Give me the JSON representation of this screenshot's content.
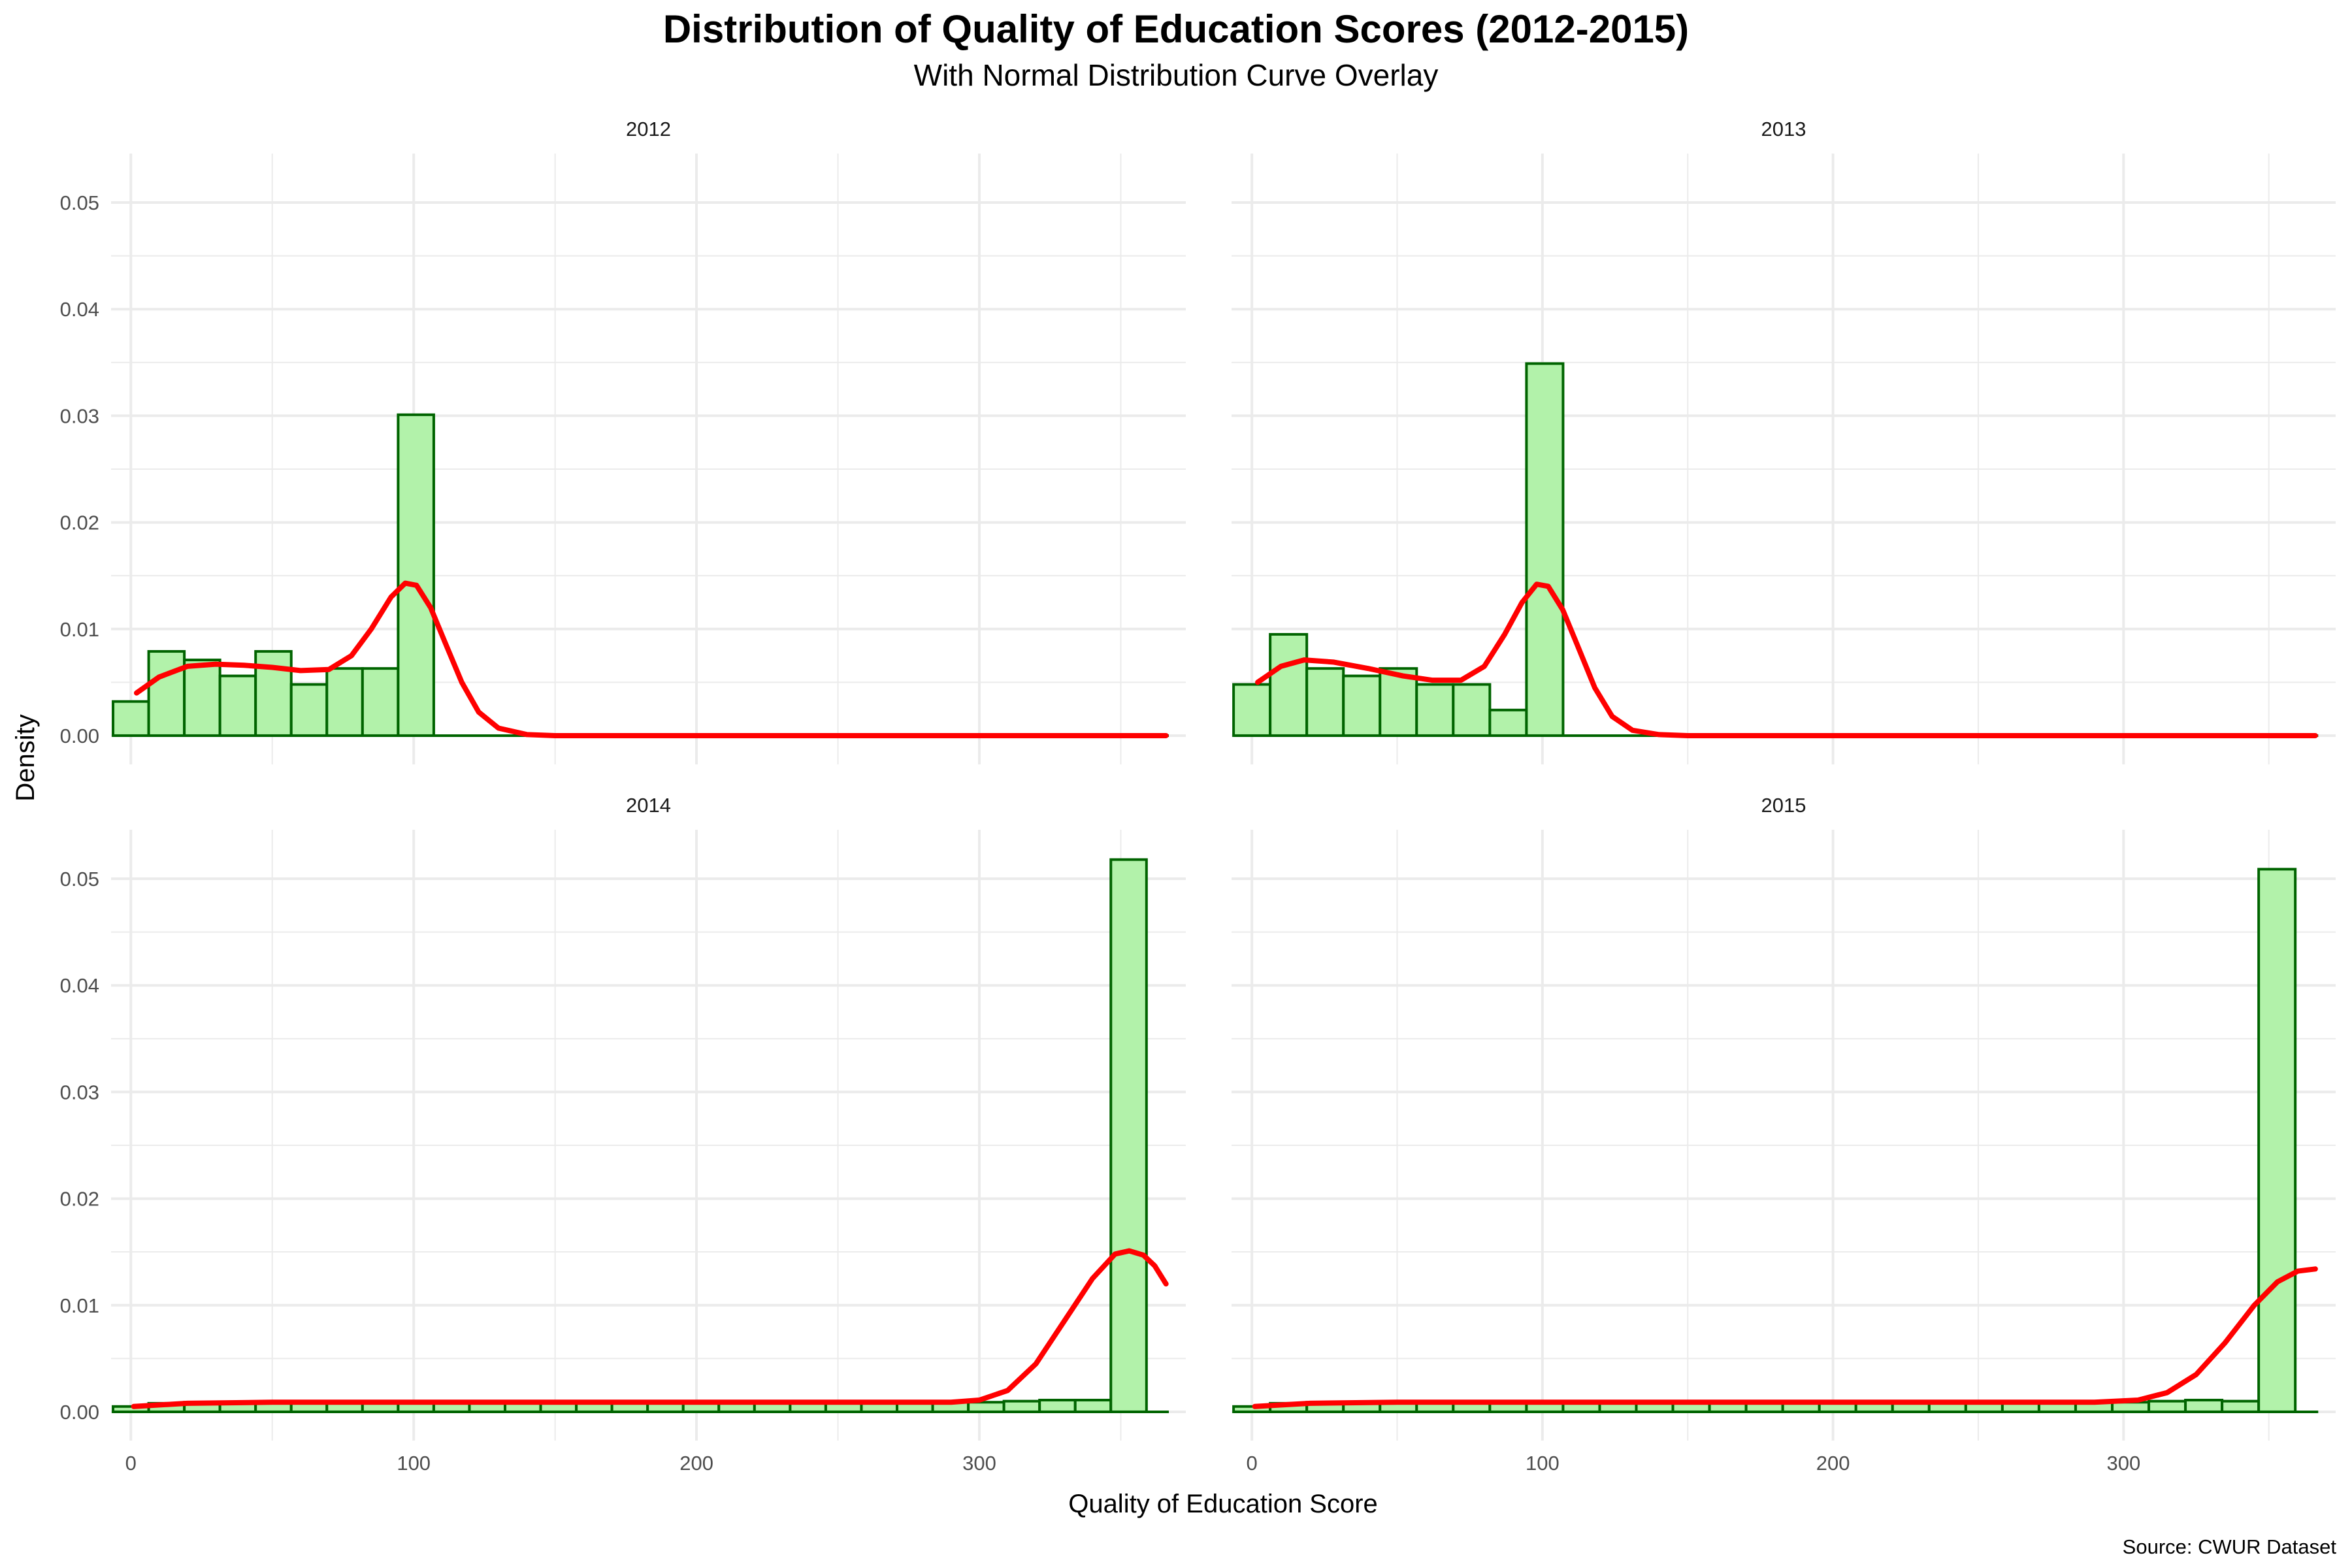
{
  "chart_data": {
    "type": "bar",
    "title": "Distribution of Quality of Education Scores (2012-2015)",
    "subtitle": "With Normal Distribution Curve Overlay",
    "xlabel": "Quality of Education Score",
    "ylabel": "Density",
    "caption": "Source: CWUR Dataset",
    "xlim": [
      -7,
      373
    ],
    "ylim": [
      -0.0027,
      0.0546
    ],
    "x_ticks": [
      0,
      100,
      200,
      300
    ],
    "y_ticks": [
      0.0,
      0.01,
      0.02,
      0.03,
      0.04,
      0.05
    ],
    "y_tick_labels": [
      "0.00",
      "0.01",
      "0.02",
      "0.03",
      "0.04",
      "0.05"
    ],
    "grid": true,
    "colors": {
      "bar_fill": "#b2f2aa",
      "bar_stroke": "#006400",
      "curve": "#ff0000",
      "grid": "#ebebeb"
    },
    "panels": [
      {
        "label": "2012",
        "bin_start": -6.3,
        "bin_width": 12.6,
        "values": [
          0.0032,
          0.0079,
          0.0071,
          0.0056,
          0.0079,
          0.0048,
          0.0063,
          0.0063,
          0.0301
        ],
        "curve": [
          [
            2,
            0.004
          ],
          [
            10,
            0.0055
          ],
          [
            20,
            0.0065
          ],
          [
            30,
            0.0067
          ],
          [
            40,
            0.0066
          ],
          [
            50,
            0.0064
          ],
          [
            60,
            0.0061
          ],
          [
            70,
            0.0062
          ],
          [
            78,
            0.0075
          ],
          [
            85,
            0.01
          ],
          [
            92,
            0.013
          ],
          [
            97,
            0.0143
          ],
          [
            101,
            0.0141
          ],
          [
            106,
            0.012
          ],
          [
            111,
            0.0088
          ],
          [
            117,
            0.005
          ],
          [
            123,
            0.0022
          ],
          [
            130,
            0.0007
          ],
          [
            140,
            0.0001
          ],
          [
            150,
            0.0
          ],
          [
            250,
            0.0
          ],
          [
            366,
            0.0
          ]
        ]
      },
      {
        "label": "2013",
        "bin_start": -6.3,
        "bin_width": 12.6,
        "values": [
          0.0048,
          0.0095,
          0.0063,
          0.0056,
          0.0063,
          0.0048,
          0.0048,
          0.0024,
          0.0349
        ],
        "curve": [
          [
            2,
            0.005
          ],
          [
            10,
            0.0065
          ],
          [
            18,
            0.0071
          ],
          [
            28,
            0.0069
          ],
          [
            40,
            0.0063
          ],
          [
            52,
            0.0056
          ],
          [
            62,
            0.0052
          ],
          [
            72,
            0.0052
          ],
          [
            80,
            0.0065
          ],
          [
            87,
            0.0095
          ],
          [
            93,
            0.0125
          ],
          [
            98,
            0.0142
          ],
          [
            102,
            0.014
          ],
          [
            107,
            0.0118
          ],
          [
            112,
            0.0085
          ],
          [
            118,
            0.0045
          ],
          [
            124,
            0.0018
          ],
          [
            131,
            0.0005
          ],
          [
            140,
            0.0001
          ],
          [
            150,
            0.0
          ],
          [
            250,
            0.0
          ],
          [
            366,
            0.0
          ]
        ]
      },
      {
        "label": "2014",
        "bin_start": -6.3,
        "bin_width": 12.6,
        "values": [
          0.0005,
          0.0008,
          0.0009,
          0.0009,
          0.0009,
          0.0009,
          0.0009,
          0.0009,
          0.0009,
          0.0009,
          0.0009,
          0.0009,
          0.0009,
          0.0009,
          0.0009,
          0.0009,
          0.0009,
          0.0009,
          0.0009,
          0.0009,
          0.0009,
          0.0009,
          0.0009,
          0.0009,
          0.0009,
          0.001,
          0.0011,
          0.0011,
          0.0518
        ],
        "curve": [
          [
            1,
            0.0005
          ],
          [
            20,
            0.0008
          ],
          [
            50,
            0.0009
          ],
          [
            100,
            0.0009
          ],
          [
            200,
            0.0009
          ],
          [
            290,
            0.0009
          ],
          [
            300,
            0.0011
          ],
          [
            310,
            0.002
          ],
          [
            320,
            0.0045
          ],
          [
            330,
            0.0085
          ],
          [
            340,
            0.0125
          ],
          [
            348,
            0.0148
          ],
          [
            353,
            0.0151
          ],
          [
            358,
            0.0147
          ],
          [
            362,
            0.0137
          ],
          [
            366,
            0.012
          ]
        ]
      },
      {
        "label": "2015",
        "bin_start": -6.3,
        "bin_width": 12.6,
        "values": [
          0.0005,
          0.0008,
          0.0009,
          0.0009,
          0.0009,
          0.0009,
          0.0009,
          0.0009,
          0.0009,
          0.0009,
          0.0009,
          0.0009,
          0.0009,
          0.0009,
          0.0009,
          0.0009,
          0.0009,
          0.0009,
          0.0009,
          0.0009,
          0.0009,
          0.0009,
          0.0009,
          0.0009,
          0.0009,
          0.001,
          0.0011,
          0.001,
          0.0509
        ],
        "curve": [
          [
            1,
            0.0005
          ],
          [
            20,
            0.0008
          ],
          [
            50,
            0.0009
          ],
          [
            100,
            0.0009
          ],
          [
            200,
            0.0009
          ],
          [
            290,
            0.0009
          ],
          [
            305,
            0.0011
          ],
          [
            315,
            0.0018
          ],
          [
            325,
            0.0035
          ],
          [
            335,
            0.0065
          ],
          [
            345,
            0.01
          ],
          [
            353,
            0.0122
          ],
          [
            360,
            0.0132
          ],
          [
            366,
            0.0134
          ]
        ]
      }
    ]
  }
}
